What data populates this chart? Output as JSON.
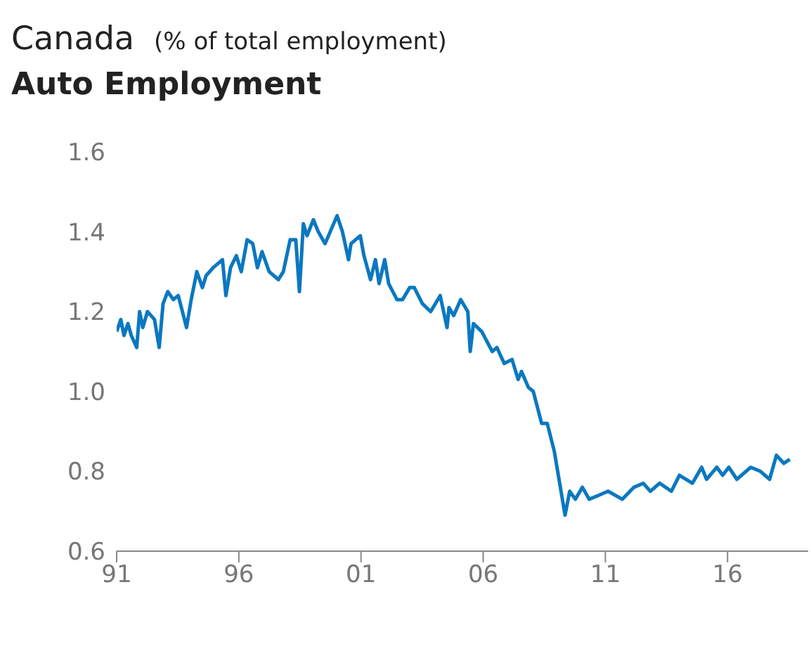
{
  "chart_data": {
    "type": "line",
    "title": "Auto Employment",
    "subtitle": "Canada",
    "ylabel": "(% of total employment)",
    "x": [
      1991.0,
      1991.17,
      1991.3,
      1991.46,
      1991.6,
      1991.82,
      1991.94,
      1992.07,
      1992.26,
      1992.55,
      1992.74,
      1992.9,
      1993.09,
      1993.32,
      1993.52,
      1993.86,
      1994.05,
      1994.28,
      1994.51,
      1994.66,
      1994.95,
      1995.14,
      1995.33,
      1995.47,
      1995.66,
      1995.9,
      1996.1,
      1996.34,
      1996.57,
      1996.76,
      1996.95,
      1997.24,
      1997.62,
      1997.82,
      1998.1,
      1998.33,
      1998.48,
      1998.64,
      1998.79,
      1999.05,
      1999.25,
      1999.53,
      2000.02,
      2000.24,
      2000.49,
      2000.59,
      2000.97,
      2001.12,
      2001.39,
      2001.59,
      2001.74,
      2001.97,
      2002.13,
      2002.47,
      2002.7,
      2002.99,
      2003.18,
      2003.51,
      2003.85,
      2004.24,
      2004.52,
      2004.6,
      2004.79,
      2005.08,
      2005.37,
      2005.47,
      2005.6,
      2005.94,
      2006.37,
      2006.56,
      2006.86,
      2007.18,
      2007.43,
      2007.57,
      2007.85,
      2008.05,
      2008.39,
      2008.62,
      2008.91,
      2009.35,
      2009.54,
      2009.77,
      2010.06,
      2010.34,
      2010.73,
      2011.11,
      2011.69,
      2012.17,
      2012.55,
      2012.84,
      2013.22,
      2013.7,
      2014.03,
      2014.56,
      2014.94,
      2015.14,
      2015.56,
      2015.8,
      2016.05,
      2016.38,
      2016.95,
      2017.34,
      2017.72,
      2018.0,
      2018.3,
      2018.55
    ],
    "series": [
      {
        "color": "#0a78c0",
        "values": [
          1.15,
          1.18,
          1.14,
          1.17,
          1.14,
          1.11,
          1.2,
          1.16,
          1.2,
          1.18,
          1.11,
          1.22,
          1.25,
          1.23,
          1.24,
          1.16,
          1.23,
          1.3,
          1.26,
          1.29,
          1.31,
          1.32,
          1.33,
          1.24,
          1.31,
          1.34,
          1.3,
          1.38,
          1.37,
          1.31,
          1.35,
          1.3,
          1.28,
          1.3,
          1.38,
          1.38,
          1.25,
          1.42,
          1.39,
          1.43,
          1.4,
          1.37,
          1.44,
          1.4,
          1.33,
          1.37,
          1.39,
          1.34,
          1.28,
          1.33,
          1.27,
          1.33,
          1.27,
          1.23,
          1.23,
          1.26,
          1.26,
          1.22,
          1.2,
          1.24,
          1.16,
          1.21,
          1.19,
          1.23,
          1.2,
          1.1,
          1.17,
          1.15,
          1.1,
          1.11,
          1.07,
          1.08,
          1.03,
          1.05,
          1.01,
          1.0,
          0.92,
          0.92,
          0.85,
          0.69,
          0.75,
          0.73,
          0.76,
          0.73,
          0.74,
          0.75,
          0.73,
          0.76,
          0.77,
          0.75,
          0.77,
          0.75,
          0.79,
          0.77,
          0.81,
          0.78,
          0.81,
          0.79,
          0.81,
          0.78,
          0.81,
          0.8,
          0.78,
          0.84,
          0.82,
          0.83
        ]
      }
    ],
    "xlim": [
      1991,
      2019.3
    ],
    "xticks": [
      {
        "value": 1991,
        "label": "91"
      },
      {
        "value": 1996,
        "label": "96"
      },
      {
        "value": 2001,
        "label": "01"
      },
      {
        "value": 2006,
        "label": "06"
      },
      {
        "value": 2011,
        "label": "11"
      },
      {
        "value": 2016,
        "label": "16"
      }
    ],
    "ylim": [
      0.6,
      1.6
    ],
    "yticks": [
      {
        "value": 0.6,
        "label": "0.6"
      },
      {
        "value": 0.8,
        "label": "0.8"
      },
      {
        "value": 1.0,
        "label": "1.0"
      },
      {
        "value": 1.2,
        "label": "1.2"
      },
      {
        "value": 1.4,
        "label": "1.4"
      },
      {
        "value": 1.6,
        "label": "1.6"
      }
    ],
    "grid": false,
    "legend": false,
    "marker": "none",
    "line_style": "solid"
  }
}
